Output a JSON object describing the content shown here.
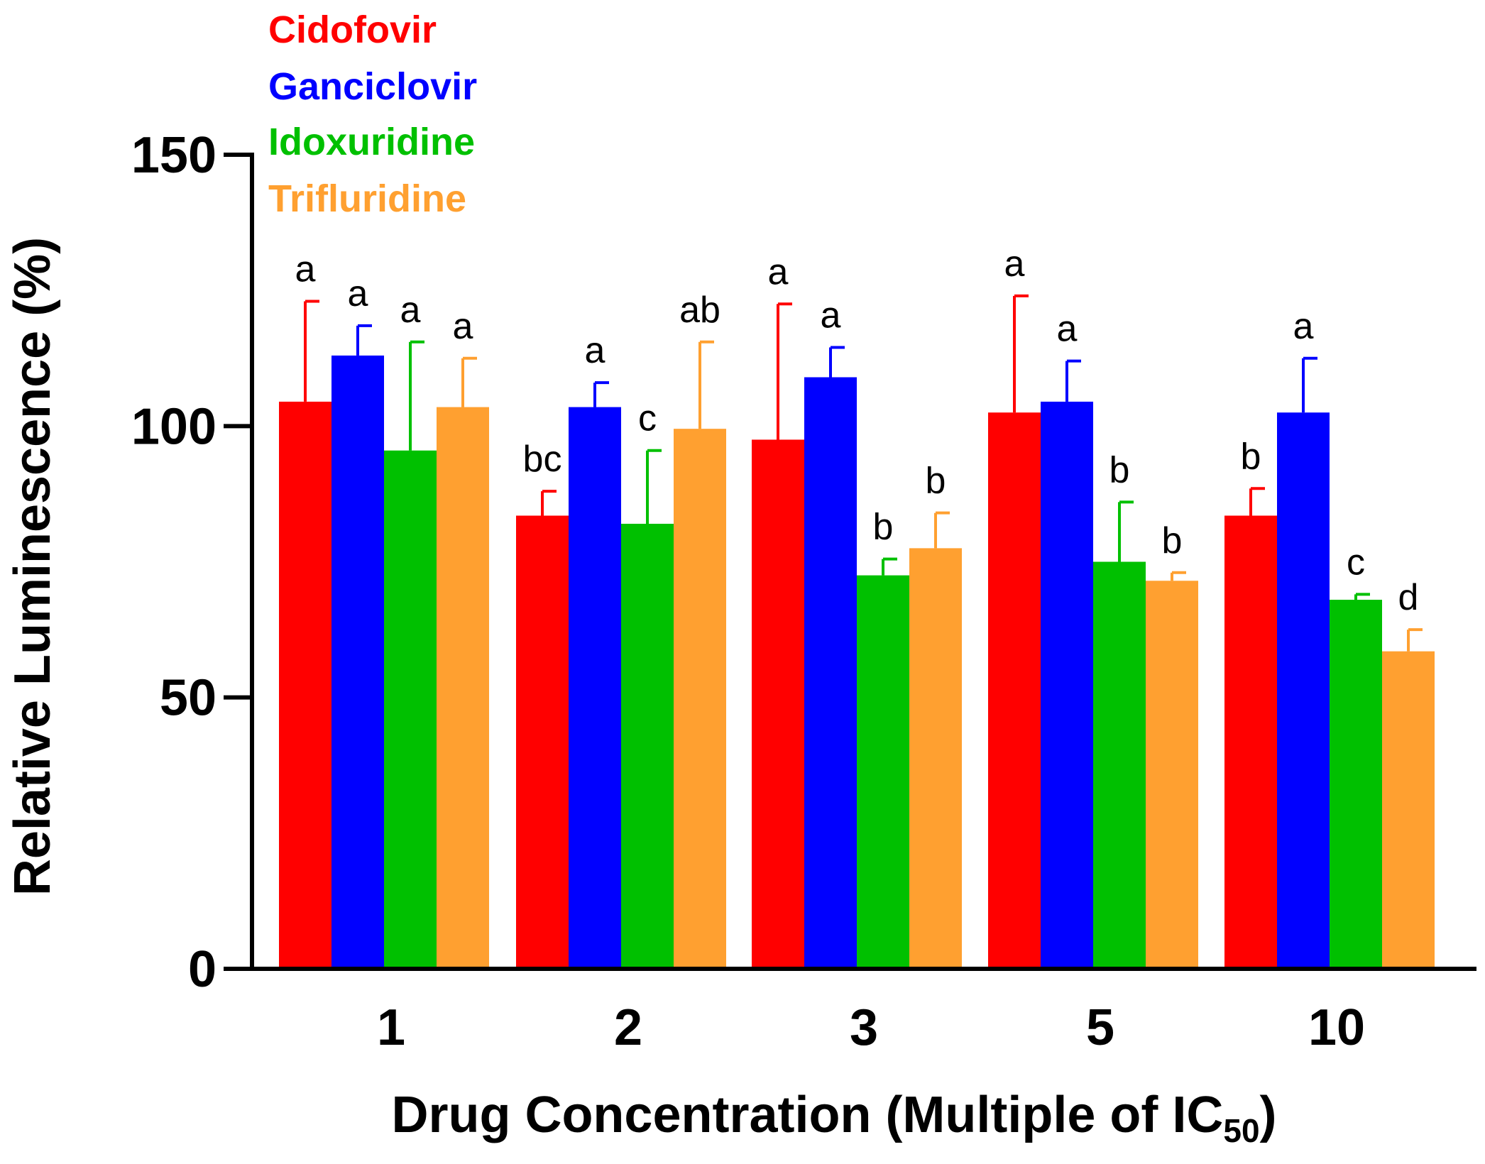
{
  "chart_data": {
    "type": "bar",
    "xlabel": "Drug Concentration (Multiple of IC",
    "xlabel_subscript": "50",
    "xlabel_suffix": ")",
    "ylabel": "Relative Luminescence (%)",
    "ylim": [
      0,
      150
    ],
    "yticks": [
      0,
      50,
      100,
      150
    ],
    "categories": [
      "1",
      "2",
      "3",
      "5",
      "10"
    ],
    "legend_position": "top-left",
    "series": [
      {
        "name": "Cidofovir",
        "color": "#ff0000",
        "values": [
          104.5,
          83.5,
          97.5,
          102.5,
          83.5
        ],
        "errors": [
          18.5,
          4.5,
          25,
          21.5,
          5
        ],
        "letters": [
          "a",
          "bc",
          "a",
          "a",
          "b"
        ]
      },
      {
        "name": "Ganciclovir",
        "color": "#0000ff",
        "values": [
          113,
          103.5,
          109,
          104.5,
          102.5
        ],
        "errors": [
          5.5,
          4.5,
          5.5,
          7.5,
          10
        ],
        "letters": [
          "a",
          "a",
          "a",
          "a",
          "a"
        ]
      },
      {
        "name": "Idoxuridine",
        "color": "#00c000",
        "values": [
          95.5,
          82,
          72.5,
          75,
          68
        ],
        "errors": [
          20,
          13.5,
          3,
          11,
          1
        ],
        "letters": [
          "a",
          "c",
          "b",
          "b",
          "c"
        ]
      },
      {
        "name": "Trifluridine",
        "color": "#ffa030",
        "values": [
          103.5,
          99.5,
          77.5,
          71.5,
          58.5
        ],
        "errors": [
          9,
          16,
          6.5,
          1.5,
          4
        ],
        "letters": [
          "a",
          "ab",
          "b",
          "b",
          "d"
        ]
      }
    ]
  }
}
